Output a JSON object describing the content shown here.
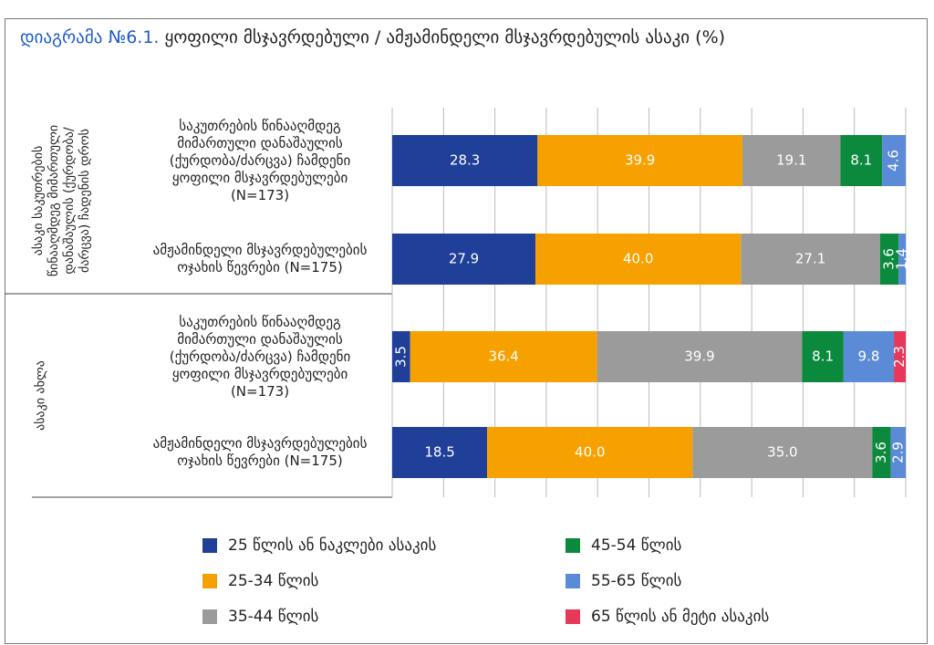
{
  "chart_data": {
    "type": "stacked-barh",
    "title_prefix": "დიაგრამა №6.1.",
    "title": "ყოფილი მსჯავრდებული / ამჟამინდელი მსჯავრდებულის ასაკი (%)",
    "groups": [
      "ასაკი საკუთრების წინააღმდეგ მიმართული დანაშაულის (ქურდობა/ძარცვა) ჩადენის დროს",
      "ასაკი ახლა"
    ],
    "categories": [
      "საკუთრების წინააღმდეგ მიმართული დანაშაულის (ქურდობა/ძარცვა) ჩამდენი ყოფილი მსჯავრდებულები (N=173)",
      "ამჟამინდელი მსჯავრდებულების ოჯახის წევრები (N=175)",
      "საკუთრების წინააღმდეგ მიმართული დანაშაულის (ქურდობა/ძარცვა) ჩამდენი ყოფილი მსჯავრდებულები (N=173)",
      "ამჟამინდელი მსჯავრდებულების ოჯახის წევრები (N=175)"
    ],
    "series": [
      {
        "name": "25 წლის ან ნაკლები ასაკის",
        "color": "#1f3f99",
        "values": [
          28.3,
          27.9,
          3.5,
          18.5
        ],
        "value_labels": [
          "28.3",
          "27.9",
          "3.5",
          "18.5"
        ]
      },
      {
        "name": "25-34 წლის",
        "color": "#f7a100",
        "values": [
          39.9,
          40.0,
          36.4,
          40.0
        ],
        "value_labels": [
          "39.9",
          "40.0",
          "36.4",
          "40.0"
        ]
      },
      {
        "name": "35-44 წლის",
        "color": "#9b9b9b",
        "values": [
          19.1,
          27.1,
          39.9,
          35.0
        ],
        "value_labels": [
          "19.1",
          "27.1",
          "39.9",
          "35.0"
        ]
      },
      {
        "name": "45-54 წლის",
        "color": "#0b8a3e",
        "values": [
          8.1,
          3.6,
          8.1,
          3.6
        ],
        "value_labels": [
          "8.1",
          "3.6",
          "8.1",
          "3.6"
        ]
      },
      {
        "name": "55-65 წლის",
        "color": "#5b8ad6",
        "values": [
          4.6,
          1.4,
          9.8,
          2.9
        ],
        "value_labels": [
          "4.6",
          "1.4",
          "9.8",
          "2.9"
        ]
      },
      {
        "name": "65 წლის ან მეტი ასაკის",
        "color": "#e8385a",
        "values": [
          null,
          null,
          2.3,
          null
        ],
        "value_labels": [
          null,
          null,
          "2.3",
          null
        ]
      }
    ],
    "xlim": [
      0,
      100
    ],
    "xticks": [
      0,
      10,
      20,
      30,
      40,
      50,
      60,
      70,
      80,
      90,
      100
    ],
    "grid": true
  }
}
